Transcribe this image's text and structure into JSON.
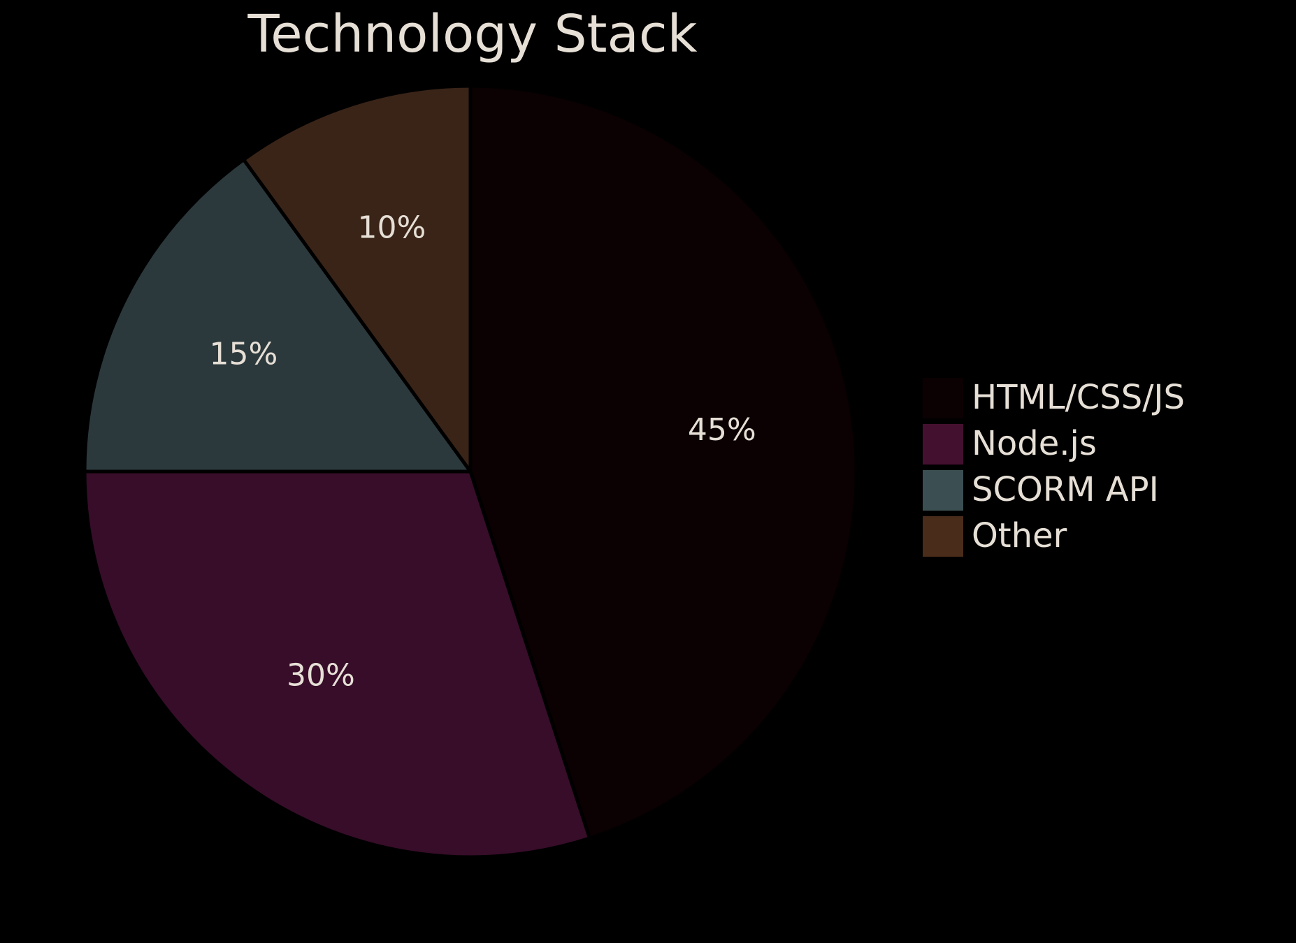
{
  "chart_data": {
    "type": "pie",
    "title": "Technology Stack",
    "start_angle_deg": 0,
    "direction": "clockwise",
    "legend_position": "right",
    "slices": [
      {
        "label": "HTML/CSS/JS",
        "value": 45,
        "value_label": "45%",
        "color": "#0b0002"
      },
      {
        "label": "Node.js",
        "value": 30,
        "value_label": "30%",
        "color": "#370d29"
      },
      {
        "label": "SCORM API",
        "value": 15,
        "value_label": "15%",
        "color": "#2c393c"
      },
      {
        "label": "Other",
        "value": 10,
        "value_label": "10%",
        "color": "#3a2418"
      }
    ],
    "legend_swatch_colors": [
      "#0b0002",
      "#44102f",
      "#3b4f53",
      "#4a2c1b"
    ]
  }
}
